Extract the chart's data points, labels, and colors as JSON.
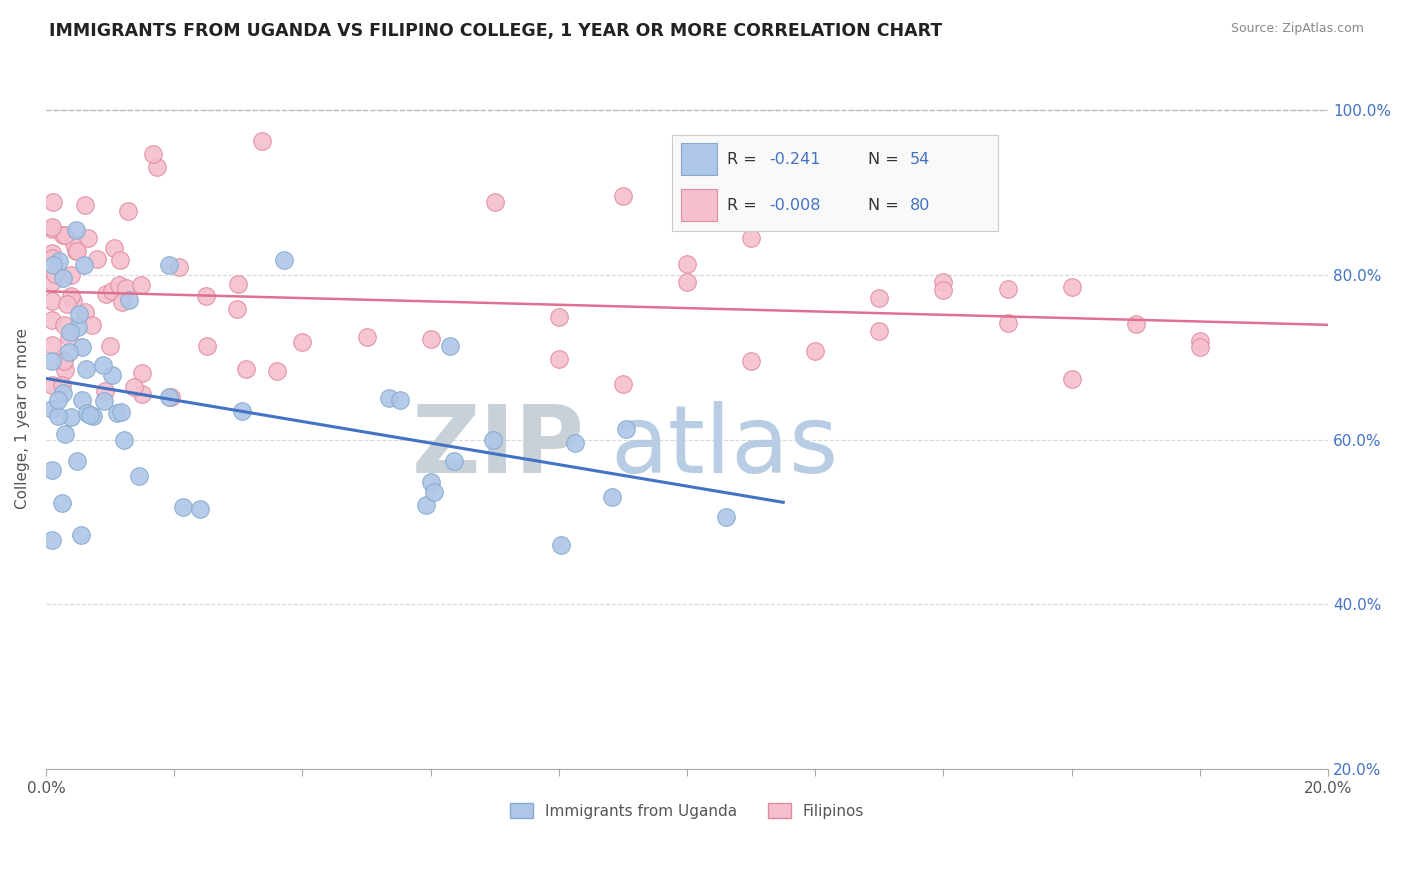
{
  "title": "IMMIGRANTS FROM UGANDA VS FILIPINO COLLEGE, 1 YEAR OR MORE CORRELATION CHART",
  "source": "Source: ZipAtlas.com",
  "ylabel": "College, 1 year or more",
  "xlim": [
    0.0,
    0.2
  ],
  "ylim": [
    0.2,
    1.05
  ],
  "xtick_vals": [
    0.0,
    0.02,
    0.04,
    0.06,
    0.08,
    0.1,
    0.12,
    0.14,
    0.16,
    0.18,
    0.2
  ],
  "xtick_labels": [
    "0.0%",
    "",
    "",
    "",
    "",
    "",
    "",
    "",
    "",
    "",
    "20.0%"
  ],
  "ytick_vals": [
    0.2,
    0.4,
    0.6,
    0.8,
    1.0
  ],
  "ytick_labels": [
    "20.0%",
    "40.0%",
    "60.0%",
    "80.0%",
    "100.0%"
  ],
  "uganda_R": "-0.241",
  "uganda_N": "54",
  "filipino_R": "-0.008",
  "filipino_N": "80",
  "uganda_dot_color": "#aec6e8",
  "uganda_dot_edge": "#85aacc",
  "filipino_dot_color": "#f5bfce",
  "filipino_dot_edge": "#e08ca0",
  "uganda_line_color": "#4472c4",
  "filipino_line_color": "#e07090",
  "watermark_zip": "ZIP",
  "watermark_atlas": "atlas",
  "watermark_zip_color": "#c8d0d8",
  "watermark_atlas_color": "#b8cce4",
  "background_color": "#ffffff",
  "grid_color": "#d8d8d8",
  "figsize": [
    14.06,
    8.92
  ],
  "dpi": 100,
  "legend_uganda_color": "#aec6e8",
  "legend_uganda_edge": "#85aacc",
  "legend_filipino_color": "#f5bfce",
  "legend_filipino_edge": "#e08ca0",
  "legend_R_color": "#4472c4",
  "legend_text_color": "#333333"
}
